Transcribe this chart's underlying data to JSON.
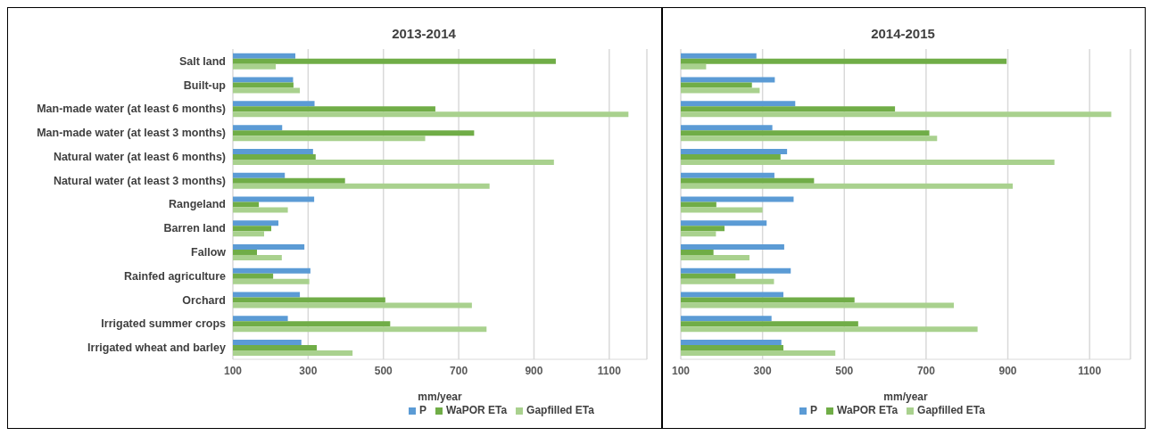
{
  "chart_data": [
    {
      "type": "bar",
      "orientation": "horizontal",
      "title": "2013-2014",
      "xlabel": "mm/year",
      "categories": [
        "Salt land",
        "Built-up",
        "Man-made water (at least 6 months)",
        "Man-made water (at least 3 months)",
        "Natural water (at least 6 months)",
        "Natural water (at least 3 months)",
        "Rangeland",
        "Barren land",
        "Fallow",
        "Rainfed agriculture",
        "Orchard",
        "Irrigated summer crops",
        "Irrigated wheat and barley"
      ],
      "series": [
        {
          "name": "P",
          "color": "#5b9bd5",
          "values": [
            266,
            260,
            317,
            231,
            313,
            238,
            316,
            221,
            290,
            306,
            278,
            246,
            282
          ]
        },
        {
          "name": "WaPOR ETa",
          "color": "#70ad47",
          "values": [
            958,
            261,
            638,
            741,
            320,
            398,
            169,
            202,
            164,
            207,
            505,
            518,
            323
          ]
        },
        {
          "name": "Gapfilled ETa",
          "color": "#a9d18e",
          "values": [
            214,
            278,
            1151,
            611,
            953,
            782,
            246,
            183,
            230,
            303,
            735,
            774,
            418
          ]
        }
      ],
      "xlim": [
        100,
        1200
      ],
      "xticks": [
        100,
        300,
        500,
        700,
        900,
        1100
      ],
      "grid": "x",
      "legend": "bottom"
    },
    {
      "type": "bar",
      "orientation": "horizontal",
      "title": "2014-2015",
      "xlabel": "mm/year",
      "categories": [
        null,
        null,
        null,
        null,
        null,
        null,
        null,
        null,
        null,
        null,
        null,
        null,
        null
      ],
      "series": [
        {
          "name": "P",
          "color": "#5b9bd5",
          "values": [
            285,
            330,
            380,
            324,
            360,
            329,
            376,
            310,
            353,
            369,
            351,
            322,
            346
          ]
        },
        {
          "name": "WaPOR ETa",
          "color": "#70ad47",
          "values": [
            897,
            274,
            624,
            708,
            344,
            426,
            187,
            207,
            180,
            234,
            525,
            534,
            351
          ]
        },
        {
          "name": "Gapfilled ETa",
          "color": "#a9d18e",
          "values": [
            162,
            293,
            1153,
            727,
            1014,
            912,
            300,
            186,
            268,
            328,
            768,
            826,
            478
          ]
        }
      ],
      "xlim": [
        100,
        1200
      ],
      "xticks": [
        100,
        300,
        500,
        700,
        900,
        1100
      ],
      "grid": "x",
      "legend": "bottom"
    }
  ]
}
